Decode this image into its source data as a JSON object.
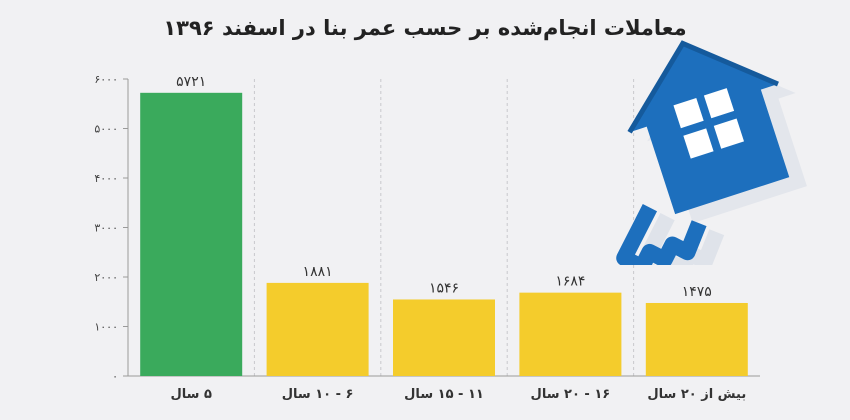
{
  "chart_data": {
    "type": "bar",
    "title": "معاملات انجام‌شده بر حسب عمر بنا در اسفند ۱۳۹۶",
    "categories": [
      "۵ سال",
      "۶ - ۱۰ سال",
      "۱۱ - ۱۵ سال",
      "۱۶ - ۲۰ سال",
      "بیش از ۲۰ سال"
    ],
    "values": [
      5721,
      1881,
      1546,
      1684,
      1475
    ],
    "value_labels": [
      "۵۷۲۱",
      "۱۸۸۱",
      "۱۵۴۶",
      "۱۶۸۴",
      "۱۴۷۵"
    ],
    "bar_colors": [
      "#3aaa5c",
      "#f4cc2c",
      "#f4cc2c",
      "#f4cc2c",
      "#f4cc2c"
    ],
    "ylim": [
      0,
      6000
    ],
    "yticks": [
      0,
      1000,
      2000,
      3000,
      4000,
      5000,
      6000
    ],
    "ytick_labels": [
      "۰",
      "۱۰۰۰",
      "۲۰۰۰",
      "۳۰۰۰",
      "۴۰۰۰",
      "۵۰۰۰",
      "۶۰۰۰"
    ],
    "grid": "vertical dashed between categories",
    "xlabel": "",
    "ylabel": ""
  },
  "decoration": {
    "logo_icon": "house-key-icon",
    "logo_color": "#1d6fbd"
  }
}
